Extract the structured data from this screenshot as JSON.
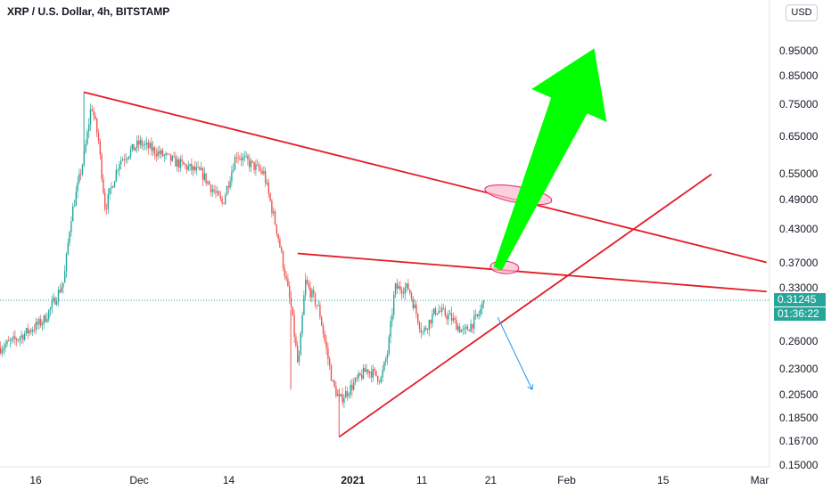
{
  "header": {
    "title": "XRP / U.S. Dollar, 4h, BITSTAMP",
    "currency_button": "USD"
  },
  "colors": {
    "up": "#26a69a",
    "down": "#ef5350",
    "trendline": "#e31b23",
    "arrow_up": "#00ff00",
    "arrow_down": "#2196f3",
    "highlight": "#f8bbd0"
  },
  "price_labels": {
    "current_price": "0.31245",
    "countdown": "01:36:22"
  },
  "chart_data": {
    "type": "candlestick",
    "title": "XRP / U.S. Dollar, 4h, BITSTAMP",
    "y_axis": {
      "scale": "log",
      "range": [
        0.149,
        1.1
      ],
      "tick_labels": [
        "0.95000",
        "0.85000",
        "0.75000",
        "0.65000",
        "0.55000",
        "0.49000",
        "0.43000",
        "0.37000",
        "0.33000",
        "0.26000",
        "0.23000",
        "0.20500",
        "0.18500",
        "0.16700",
        "0.15000"
      ],
      "tick_values": [
        0.95,
        0.85,
        0.75,
        0.65,
        0.55,
        0.49,
        0.43,
        0.37,
        0.33,
        0.26,
        0.23,
        0.205,
        0.185,
        0.167,
        0.15
      ]
    },
    "x_axis": {
      "tick_labels": [
        "16",
        "Dec",
        "14",
        "2021",
        "11",
        "21",
        "Feb",
        "15",
        "Mar"
      ],
      "bold_labels": [
        "2021"
      ]
    },
    "price_path": [
      [
        "2020-11-10",
        0.25
      ],
      [
        "2020-11-13",
        0.262
      ],
      [
        "2020-11-17",
        0.285
      ],
      [
        "2020-11-18",
        0.3
      ],
      [
        "2020-11-20",
        0.34
      ],
      [
        "2020-11-21",
        0.45
      ],
      [
        "2020-11-23",
        0.6
      ],
      [
        "2020-11-24",
        0.75
      ],
      [
        "2020-11-25",
        0.64
      ],
      [
        "2020-11-26",
        0.47
      ],
      [
        "2020-11-28",
        0.58
      ],
      [
        "2020-12-01",
        0.63
      ],
      [
        "2020-12-03",
        0.61
      ],
      [
        "2020-12-06",
        0.58
      ],
      [
        "2020-12-10",
        0.55
      ],
      [
        "2020-12-13",
        0.48
      ],
      [
        "2020-12-15",
        0.6
      ],
      [
        "2020-12-19",
        0.55
      ],
      [
        "2020-12-21",
        0.42
      ],
      [
        "2020-12-23",
        0.3
      ],
      [
        "2020-12-24",
        0.23
      ],
      [
        "2020-12-25",
        0.34
      ],
      [
        "2020-12-27",
        0.3
      ],
      [
        "2020-12-29",
        0.215
      ],
      [
        "2020-12-30",
        0.2
      ],
      [
        "2021-01-01",
        0.215
      ],
      [
        "2021-01-03",
        0.23
      ],
      [
        "2021-01-05",
        0.22
      ],
      [
        "2021-01-06",
        0.25
      ],
      [
        "2021-01-07",
        0.33
      ],
      [
        "2021-01-09",
        0.33
      ],
      [
        "2021-01-11",
        0.27
      ],
      [
        "2021-01-13",
        0.3
      ],
      [
        "2021-01-15",
        0.29
      ],
      [
        "2021-01-17",
        0.27
      ],
      [
        "2021-01-18",
        0.28
      ],
      [
        "2021-01-19",
        0.29
      ],
      [
        "2021-01-20",
        0.31245
      ]
    ],
    "trendlines": [
      {
        "name": "upper-resistance",
        "start": [
          "2020-11-23",
          0.79
        ],
        "end": [
          "2021-03-02",
          0.37
        ]
      },
      {
        "name": "lower-resistance",
        "start": [
          "2020-12-24",
          0.385
        ],
        "end": [
          "2021-03-02",
          0.325
        ]
      },
      {
        "name": "rising-support",
        "start": [
          "2020-12-30",
          0.17
        ],
        "end": [
          "2021-02-22",
          0.548
        ]
      }
    ],
    "arrows": [
      {
        "name": "bullish-arrow",
        "from": [
          "2021-01-22",
          0.36
        ],
        "to": [
          "2021-02-05",
          0.96
        ]
      },
      {
        "name": "bearish-arrow",
        "from": [
          "2021-01-22",
          0.29
        ],
        "to": [
          "2021-01-27",
          0.21
        ]
      }
    ],
    "highlights": [
      {
        "name": "breakout-zone-upper",
        "center": [
          "2021-01-25",
          0.5
        ]
      },
      {
        "name": "breakout-zone-lower",
        "center": [
          "2021-01-23",
          0.362
        ]
      }
    ],
    "last_price": 0.31245,
    "grid": false
  }
}
